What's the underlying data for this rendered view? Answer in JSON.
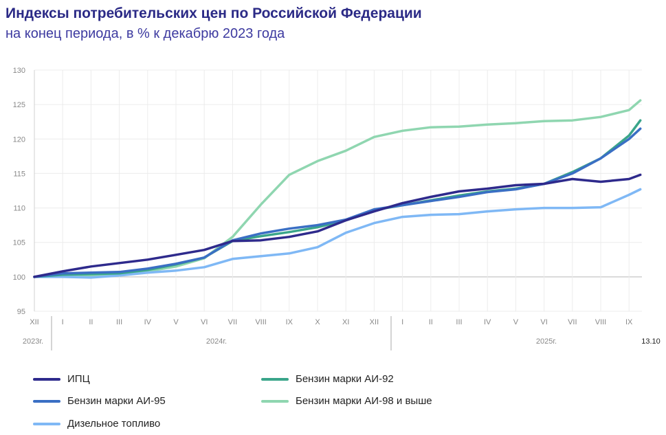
{
  "title": "Индексы потребительских цен по Российской Федерации",
  "subtitle": "на конец периода, в % к декабрю 2023 года",
  "chart_data": {
    "type": "line",
    "title": "Индексы потребительских цен по Российской Федерации",
    "subtitle": "на конец периода, в % к декабрю 2023 года",
    "categories": [
      "XII",
      "I",
      "II",
      "III",
      "IV",
      "V",
      "VI",
      "VII",
      "VIII",
      "IX",
      "X",
      "XI",
      "XII",
      "I",
      "II",
      "III",
      "IV",
      "V",
      "VI",
      "VII",
      "VIII",
      "IX",
      "13.10"
    ],
    "year_labels": [
      {
        "label": "2023г.",
        "from": 0,
        "to": 0
      },
      {
        "label": "2024г.",
        "from": 1,
        "to": 12
      },
      {
        "label": "2025г.",
        "from": 13,
        "to": 22
      }
    ],
    "ylim": [
      95,
      130
    ],
    "yticks": [
      95,
      100,
      105,
      110,
      115,
      120,
      125,
      130
    ],
    "grid": true,
    "legend_position": "bottom",
    "series": [
      {
        "name": "ИПЦ",
        "color": "#2e2a8c",
        "values": [
          100,
          100.8,
          101.5,
          102.0,
          102.5,
          103.2,
          103.9,
          105.2,
          105.3,
          105.8,
          106.6,
          108.2,
          109.5,
          110.7,
          111.6,
          112.4,
          112.8,
          113.3,
          113.5,
          114.2,
          113.8,
          114.2,
          114.8
        ]
      },
      {
        "name": "Бензин марки АИ-92",
        "color": "#3aa58a",
        "values": [
          100,
          100.3,
          100.4,
          100.5,
          101.0,
          101.8,
          102.8,
          105.2,
          105.9,
          106.5,
          107.2,
          108.2,
          109.7,
          110.4,
          111.1,
          111.8,
          112.4,
          112.8,
          113.5,
          115.2,
          117.2,
          120.5,
          122.7
        ]
      },
      {
        "name": "Бензин марки АИ-95",
        "color": "#3a6fc4",
        "values": [
          100,
          100.5,
          100.6,
          100.7,
          101.2,
          101.9,
          102.8,
          105.3,
          106.3,
          107.0,
          107.5,
          108.3,
          109.8,
          110.4,
          111.0,
          111.6,
          112.3,
          112.7,
          113.5,
          115.0,
          117.2,
          120.0,
          121.5
        ]
      },
      {
        "name": "Бензин марки АИ-98 и  выше",
        "color": "#8fd6b0",
        "values": [
          100,
          100.2,
          100.2,
          100.3,
          100.8,
          101.5,
          102.7,
          105.8,
          110.5,
          114.8,
          116.8,
          118.3,
          120.3,
          121.2,
          121.7,
          121.8,
          122.1,
          122.3,
          122.6,
          122.7,
          123.2,
          124.2,
          125.6
        ]
      },
      {
        "name": "Дизельное топливо",
        "color": "#7fb8f5",
        "values": [
          100,
          100.0,
          99.9,
          100.2,
          100.6,
          100.9,
          101.4,
          102.6,
          103.0,
          103.4,
          104.3,
          106.4,
          107.8,
          108.7,
          109.0,
          109.1,
          109.5,
          109.8,
          110.0,
          110.0,
          110.1,
          111.9,
          112.7
        ]
      }
    ]
  }
}
